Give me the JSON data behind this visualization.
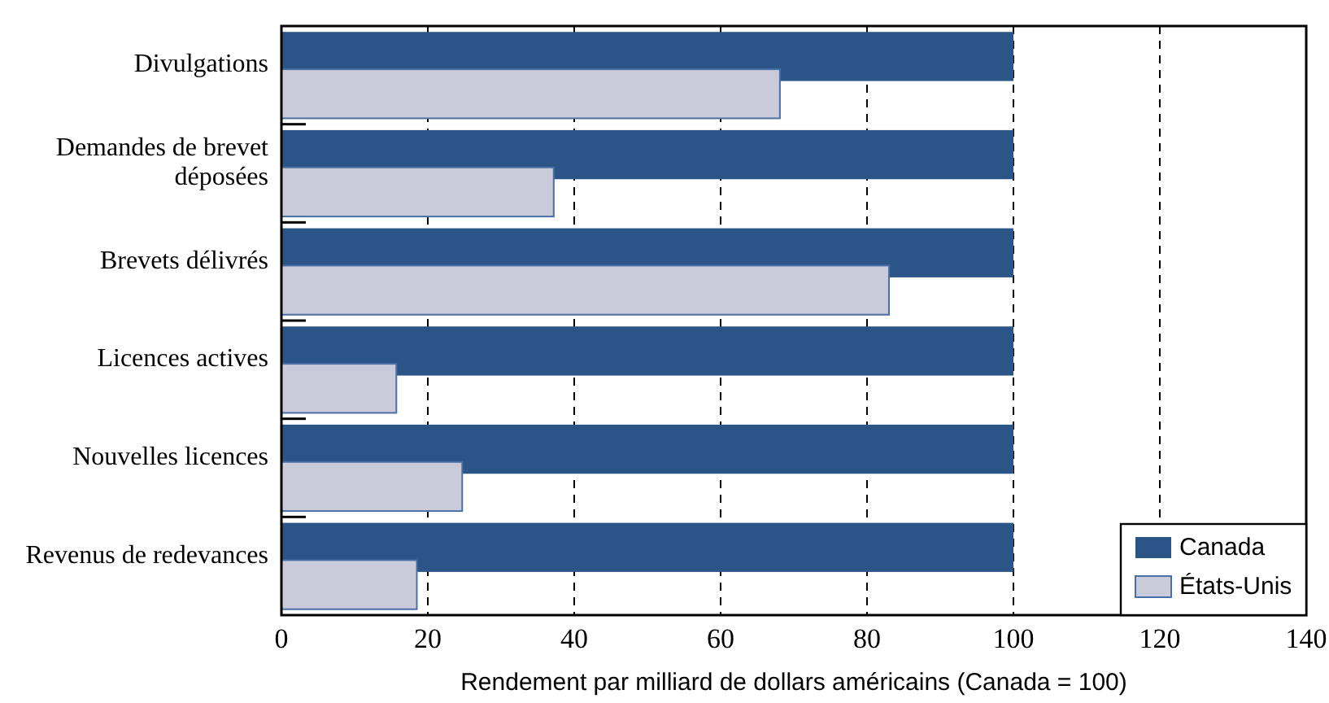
{
  "chart_data": {
    "type": "bar",
    "orientation": "horizontal",
    "categories": [
      "Divulgations",
      "Demandes de brevet déposées",
      "Brevets délivrés",
      "Licences actives",
      "Nouvelles licences",
      "Revenus de redevances"
    ],
    "series": [
      {
        "name": "Canada",
        "color": "#2c5587",
        "values": [
          100,
          100,
          100,
          100,
          100,
          100
        ]
      },
      {
        "name": "États-Unis",
        "color": "#c9cbdb",
        "values": [
          68.1,
          37.2,
          83,
          15.7,
          24.7,
          18.5
        ]
      }
    ],
    "xlabel": "Rendement par milliard de dollars américains (Canada = 100)",
    "xlim": [
      0,
      140
    ],
    "xticks": [
      0,
      20,
      40,
      60,
      80,
      100,
      120,
      140
    ],
    "grid": "x",
    "legend": "bottom right"
  }
}
